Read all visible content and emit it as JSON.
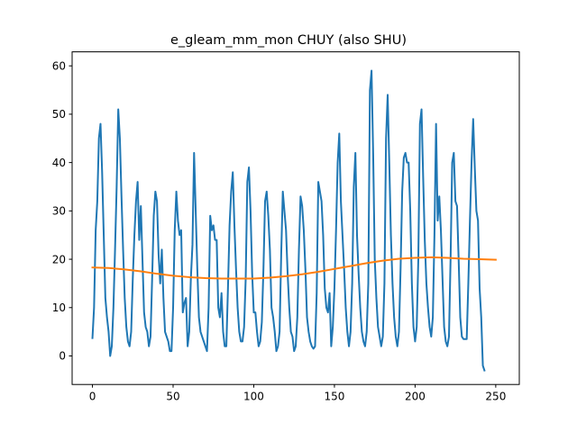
{
  "chart_data": {
    "type": "line",
    "title": "e_gleam_mm_mon CHUY (also SHU)",
    "xlabel": "",
    "ylabel": "",
    "xlim": [
      -12.6,
      264.6
    ],
    "ylim": [
      -5.9,
      62.9
    ],
    "grid": false,
    "x_ticks": [
      0,
      50,
      100,
      150,
      200,
      250
    ],
    "y_ticks": [
      0,
      10,
      20,
      30,
      40,
      50,
      60
    ],
    "series": [
      {
        "color": "#1f77b4",
        "points": [
          [
            0,
            3.7
          ],
          [
            1,
            10
          ],
          [
            2,
            26
          ],
          [
            3,
            32
          ],
          [
            4,
            45
          ],
          [
            5,
            48
          ],
          [
            6,
            38
          ],
          [
            7,
            25
          ],
          [
            8,
            12
          ],
          [
            9,
            8
          ],
          [
            10,
            5
          ],
          [
            11,
            0
          ],
          [
            12,
            2
          ],
          [
            13,
            10
          ],
          [
            14,
            22
          ],
          [
            15,
            35
          ],
          [
            16,
            51
          ],
          [
            17,
            45
          ],
          [
            18,
            33
          ],
          [
            19,
            22
          ],
          [
            20,
            12
          ],
          [
            21,
            6
          ],
          [
            22,
            3
          ],
          [
            23,
            2
          ],
          [
            24,
            5
          ],
          [
            25,
            16
          ],
          [
            26,
            25
          ],
          [
            27,
            32
          ],
          [
            28,
            36
          ],
          [
            29,
            24
          ],
          [
            30,
            31
          ],
          [
            31,
            20
          ],
          [
            32,
            9
          ],
          [
            33,
            6
          ],
          [
            34,
            5
          ],
          [
            35,
            2
          ],
          [
            36,
            4
          ],
          [
            37,
            16
          ],
          [
            38,
            29
          ],
          [
            39,
            34
          ],
          [
            40,
            32
          ],
          [
            41,
            21
          ],
          [
            42,
            15
          ],
          [
            43,
            22
          ],
          [
            44,
            12
          ],
          [
            45,
            5
          ],
          [
            46,
            4
          ],
          [
            47,
            3
          ],
          [
            48,
            1
          ],
          [
            49,
            1
          ],
          [
            50,
            10
          ],
          [
            51,
            26
          ],
          [
            52,
            34
          ],
          [
            53,
            28
          ],
          [
            54,
            25
          ],
          [
            55,
            26
          ],
          [
            56,
            9
          ],
          [
            57,
            11
          ],
          [
            58,
            12
          ],
          [
            59,
            2
          ],
          [
            60,
            5
          ],
          [
            61,
            16
          ],
          [
            62,
            23
          ],
          [
            63,
            42
          ],
          [
            64,
            30
          ],
          [
            65,
            18
          ],
          [
            66,
            8
          ],
          [
            67,
            5
          ],
          [
            68,
            4
          ],
          [
            69,
            3
          ],
          [
            70,
            2
          ],
          [
            71,
            1
          ],
          [
            72,
            10
          ],
          [
            73,
            29
          ],
          [
            74,
            26
          ],
          [
            75,
            27
          ],
          [
            76,
            24
          ],
          [
            77,
            24
          ],
          [
            78,
            10
          ],
          [
            79,
            8
          ],
          [
            80,
            13
          ],
          [
            81,
            5
          ],
          [
            82,
            2
          ],
          [
            83,
            2
          ],
          [
            84,
            14
          ],
          [
            85,
            27
          ],
          [
            86,
            34
          ],
          [
            87,
            38
          ],
          [
            88,
            27
          ],
          [
            89,
            18
          ],
          [
            90,
            10
          ],
          [
            91,
            5
          ],
          [
            92,
            3
          ],
          [
            93,
            3
          ],
          [
            94,
            6
          ],
          [
            95,
            16
          ],
          [
            96,
            36
          ],
          [
            97,
            39
          ],
          [
            98,
            30
          ],
          [
            99,
            17
          ],
          [
            100,
            9
          ],
          [
            101,
            9
          ],
          [
            102,
            5
          ],
          [
            103,
            2
          ],
          [
            104,
            3
          ],
          [
            105,
            7
          ],
          [
            106,
            18
          ],
          [
            107,
            32
          ],
          [
            108,
            34
          ],
          [
            109,
            29
          ],
          [
            110,
            22
          ],
          [
            111,
            10
          ],
          [
            112,
            8
          ],
          [
            113,
            5
          ],
          [
            114,
            1
          ],
          [
            115,
            2
          ],
          [
            116,
            5
          ],
          [
            117,
            21
          ],
          [
            118,
            34
          ],
          [
            119,
            30
          ],
          [
            120,
            26
          ],
          [
            121,
            17
          ],
          [
            122,
            10
          ],
          [
            123,
            5
          ],
          [
            124,
            4
          ],
          [
            125,
            1
          ],
          [
            126,
            2
          ],
          [
            127,
            8
          ],
          [
            128,
            22
          ],
          [
            129,
            33
          ],
          [
            130,
            31
          ],
          [
            131,
            26
          ],
          [
            132,
            18
          ],
          [
            133,
            8
          ],
          [
            134,
            5
          ],
          [
            135,
            3
          ],
          [
            136,
            2
          ],
          [
            137,
            1.5
          ],
          [
            138,
            2
          ],
          [
            139,
            13
          ],
          [
            140,
            36
          ],
          [
            141,
            34
          ],
          [
            142,
            32
          ],
          [
            143,
            25
          ],
          [
            144,
            14
          ],
          [
            145,
            10
          ],
          [
            146,
            9
          ],
          [
            147,
            13
          ],
          [
            148,
            2
          ],
          [
            149,
            6
          ],
          [
            150,
            14
          ],
          [
            151,
            26
          ],
          [
            152,
            40
          ],
          [
            153,
            46
          ],
          [
            154,
            32
          ],
          [
            155,
            25
          ],
          [
            156,
            18
          ],
          [
            157,
            10
          ],
          [
            158,
            5
          ],
          [
            159,
            2
          ],
          [
            160,
            5
          ],
          [
            161,
            15
          ],
          [
            162,
            35
          ],
          [
            163,
            42
          ],
          [
            164,
            25
          ],
          [
            165,
            17
          ],
          [
            166,
            10
          ],
          [
            167,
            5
          ],
          [
            168,
            3
          ],
          [
            169,
            2
          ],
          [
            170,
            5
          ],
          [
            171,
            15
          ],
          [
            172,
            55
          ],
          [
            173,
            59
          ],
          [
            174,
            42
          ],
          [
            175,
            20
          ],
          [
            176,
            12
          ],
          [
            177,
            6
          ],
          [
            178,
            4
          ],
          [
            179,
            2
          ],
          [
            180,
            4
          ],
          [
            181,
            15
          ],
          [
            182,
            45
          ],
          [
            183,
            54
          ],
          [
            184,
            40
          ],
          [
            185,
            25
          ],
          [
            186,
            15
          ],
          [
            187,
            8
          ],
          [
            188,
            4
          ],
          [
            189,
            2
          ],
          [
            190,
            5
          ],
          [
            191,
            18
          ],
          [
            192,
            34
          ],
          [
            193,
            41
          ],
          [
            194,
            42
          ],
          [
            195,
            40
          ],
          [
            196,
            40
          ],
          [
            197,
            30
          ],
          [
            198,
            15
          ],
          [
            199,
            6
          ],
          [
            200,
            3
          ],
          [
            201,
            6
          ],
          [
            202,
            20
          ],
          [
            203,
            48
          ],
          [
            204,
            51
          ],
          [
            205,
            37
          ],
          [
            206,
            24
          ],
          [
            207,
            15
          ],
          [
            208,
            10
          ],
          [
            209,
            6
          ],
          [
            210,
            4
          ],
          [
            211,
            8
          ],
          [
            212,
            25
          ],
          [
            213,
            48
          ],
          [
            214,
            28
          ],
          [
            215,
            33
          ],
          [
            216,
            26
          ],
          [
            217,
            16
          ],
          [
            218,
            6
          ],
          [
            219,
            3
          ],
          [
            220,
            2
          ],
          [
            221,
            4
          ],
          [
            222,
            20
          ],
          [
            223,
            40
          ],
          [
            224,
            42
          ],
          [
            225,
            32
          ],
          [
            226,
            31
          ],
          [
            227,
            20
          ],
          [
            228,
            8
          ],
          [
            229,
            4
          ],
          [
            230,
            3.5
          ],
          [
            231,
            3.5
          ],
          [
            232,
            3.5
          ],
          [
            233,
            15
          ],
          [
            234,
            28
          ],
          [
            235,
            40
          ],
          [
            236,
            49
          ],
          [
            237,
            39
          ],
          [
            238,
            30
          ],
          [
            239,
            28
          ],
          [
            240,
            14
          ],
          [
            241,
            8
          ],
          [
            242,
            -2
          ],
          [
            243,
            -3
          ]
        ]
      },
      {
        "color": "#ff7f0e",
        "points": [
          [
            0,
            18.3
          ],
          [
            10,
            18.2
          ],
          [
            20,
            17.9
          ],
          [
            30,
            17.5
          ],
          [
            40,
            17.0
          ],
          [
            50,
            16.6
          ],
          [
            60,
            16.3
          ],
          [
            70,
            16.1
          ],
          [
            80,
            16.0
          ],
          [
            90,
            16.0
          ],
          [
            100,
            16.0
          ],
          [
            110,
            16.2
          ],
          [
            120,
            16.5
          ],
          [
            130,
            16.9
          ],
          [
            140,
            17.4
          ],
          [
            150,
            18.0
          ],
          [
            160,
            18.6
          ],
          [
            170,
            19.2
          ],
          [
            180,
            19.7
          ],
          [
            190,
            20.1
          ],
          [
            200,
            20.3
          ],
          [
            210,
            20.4
          ],
          [
            220,
            20.3
          ],
          [
            230,
            20.1
          ],
          [
            240,
            20.0
          ],
          [
            250,
            19.9
          ]
        ]
      }
    ]
  }
}
